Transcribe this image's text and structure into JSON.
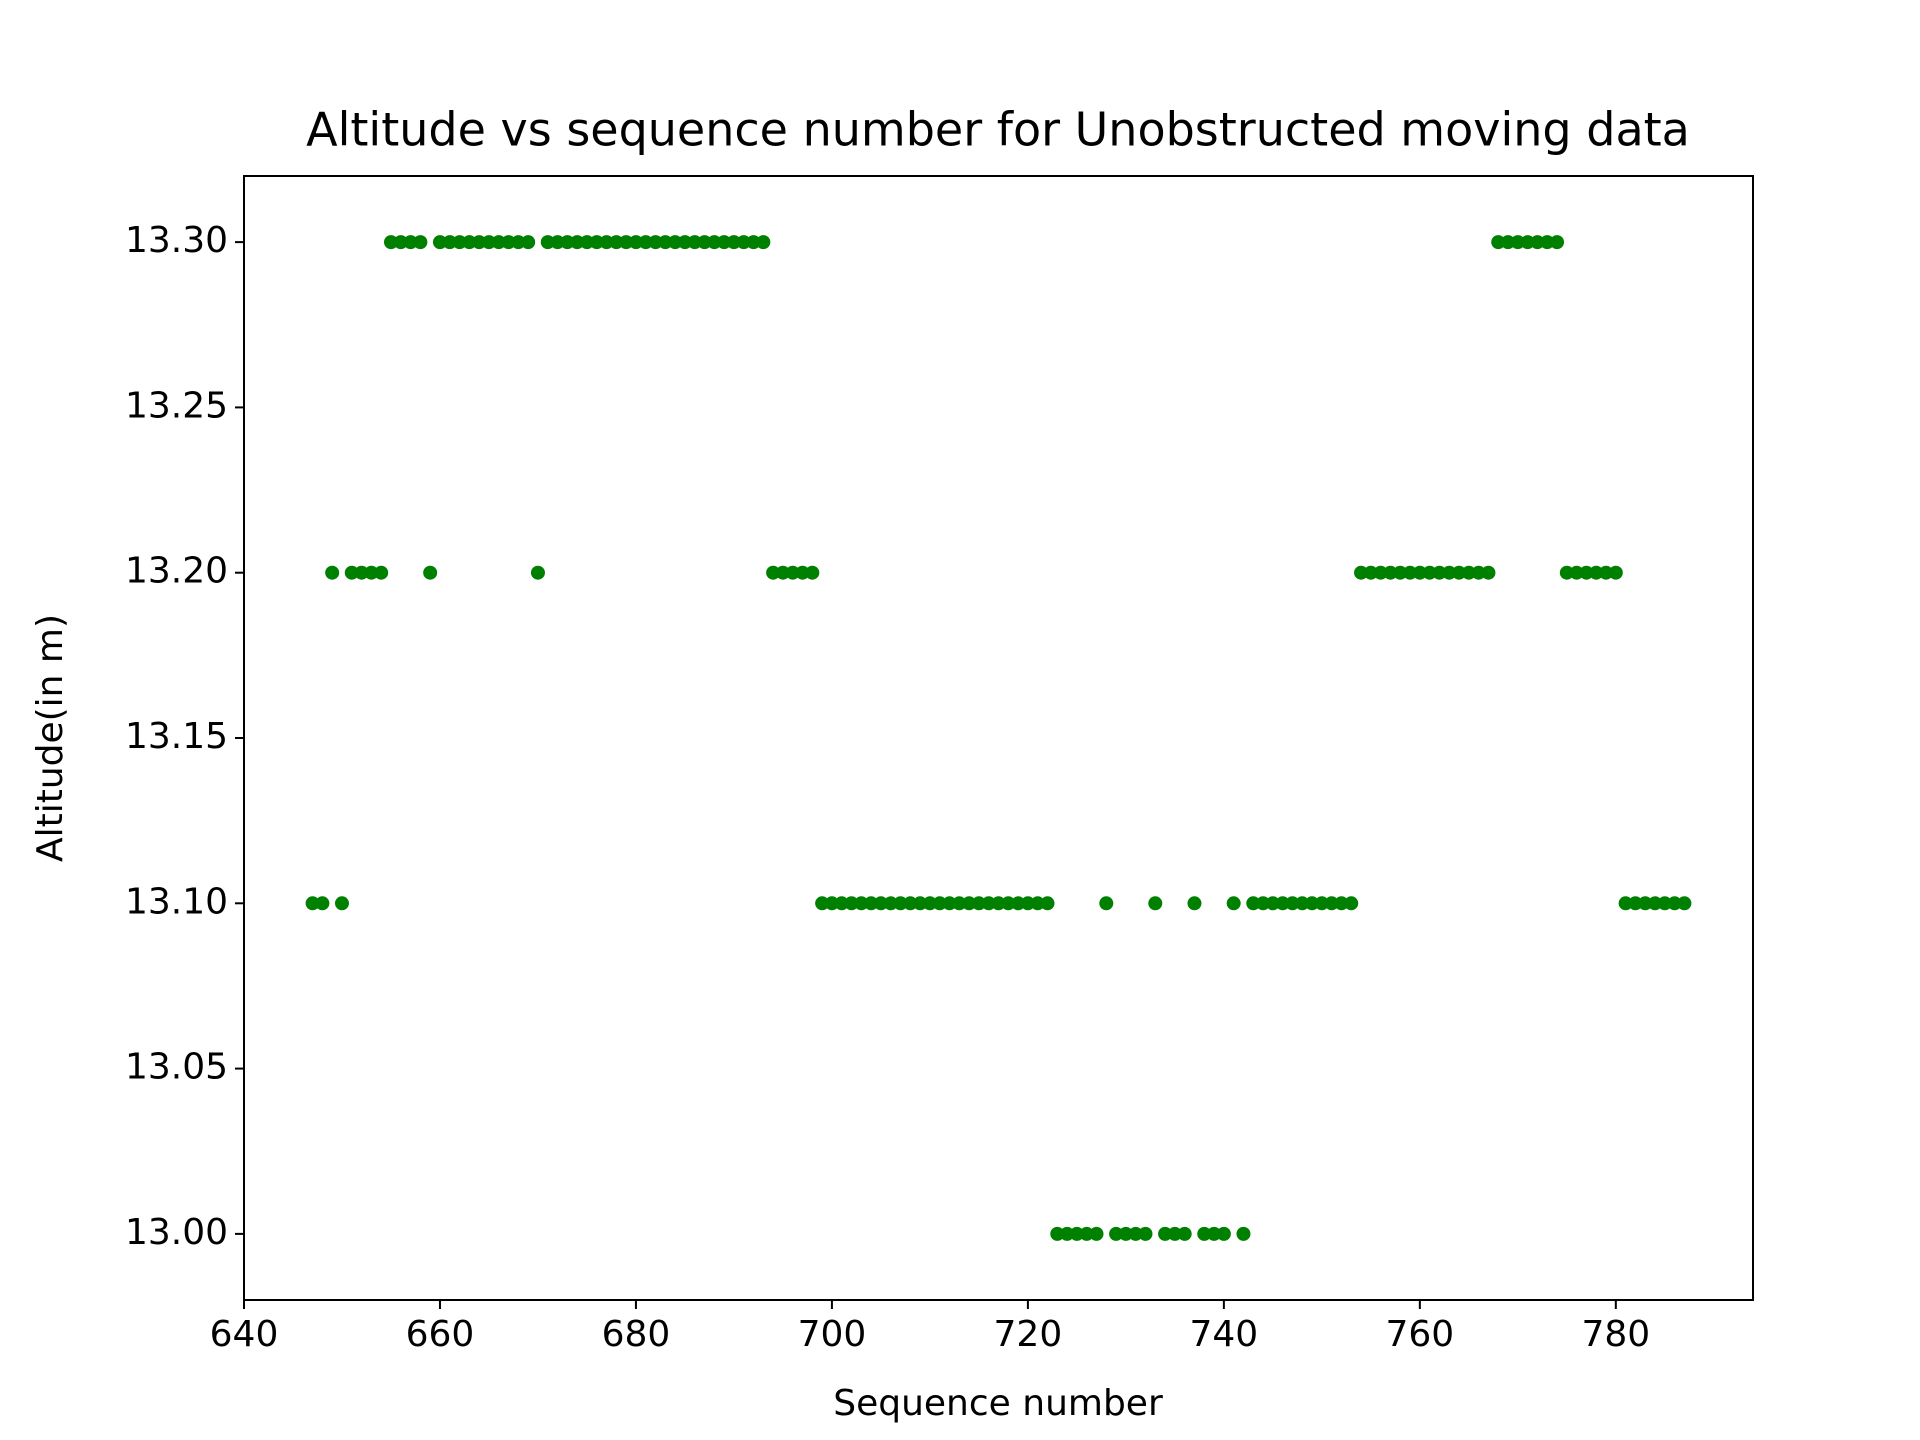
{
  "chart_data": {
    "type": "scatter",
    "title": "Altitude vs sequence number for Unobstructed moving data",
    "x_label": "Sequence number",
    "y_label": "Altitude(in m)",
    "color": "#008000",
    "x": [
      647,
      648,
      649,
      650,
      651,
      652,
      653,
      654,
      655,
      656,
      657,
      658,
      659,
      660,
      661,
      662,
      663,
      664,
      665,
      666,
      667,
      668,
      669,
      670,
      671,
      672,
      673,
      674,
      675,
      676,
      677,
      678,
      679,
      680,
      681,
      682,
      683,
      684,
      685,
      686,
      687,
      688,
      689,
      690,
      691,
      692,
      693,
      694,
      695,
      696,
      697,
      698,
      699,
      700,
      701,
      702,
      703,
      704,
      705,
      706,
      707,
      708,
      709,
      710,
      711,
      712,
      713,
      714,
      715,
      716,
      717,
      718,
      719,
      720,
      721,
      722,
      723,
      724,
      725,
      726,
      727,
      728,
      729,
      730,
      731,
      732,
      733,
      734,
      735,
      736,
      737,
      738,
      739,
      740,
      741,
      742,
      743,
      744,
      745,
      746,
      747,
      748,
      749,
      750,
      751,
      752,
      753,
      754,
      755,
      756,
      757,
      758,
      759,
      760,
      761,
      762,
      763,
      764,
      765,
      766,
      767,
      768,
      769,
      770,
      771,
      772,
      773,
      774,
      775,
      776,
      777,
      778,
      779,
      780,
      781,
      782,
      783,
      784,
      785,
      786,
      787
    ],
    "values": [
      13.1,
      13.1,
      13.2,
      13.1,
      13.2,
      13.2,
      13.2,
      13.2,
      13.3,
      13.3,
      13.3,
      13.3,
      13.2,
      13.3,
      13.3,
      13.3,
      13.3,
      13.3,
      13.3,
      13.3,
      13.3,
      13.3,
      13.3,
      13.2,
      13.3,
      13.3,
      13.3,
      13.3,
      13.3,
      13.3,
      13.3,
      13.3,
      13.3,
      13.3,
      13.3,
      13.3,
      13.3,
      13.3,
      13.3,
      13.3,
      13.3,
      13.3,
      13.3,
      13.3,
      13.3,
      13.3,
      13.3,
      13.2,
      13.2,
      13.2,
      13.2,
      13.2,
      13.1,
      13.1,
      13.1,
      13.1,
      13.1,
      13.1,
      13.1,
      13.1,
      13.1,
      13.1,
      13.1,
      13.1,
      13.1,
      13.1,
      13.1,
      13.1,
      13.1,
      13.1,
      13.1,
      13.1,
      13.1,
      13.1,
      13.1,
      13.1,
      13.0,
      13.0,
      13.0,
      13.0,
      13.0,
      13.1,
      13.0,
      13.0,
      13.0,
      13.0,
      13.1,
      13.0,
      13.0,
      13.0,
      13.1,
      13.0,
      13.0,
      13.0,
      13.1,
      13.0,
      13.1,
      13.1,
      13.1,
      13.1,
      13.1,
      13.1,
      13.1,
      13.1,
      13.1,
      13.1,
      13.1,
      13.2,
      13.2,
      13.2,
      13.2,
      13.2,
      13.2,
      13.2,
      13.2,
      13.2,
      13.2,
      13.2,
      13.2,
      13.2,
      13.2,
      13.3,
      13.3,
      13.3,
      13.3,
      13.3,
      13.3,
      13.3,
      13.2,
      13.2,
      13.2,
      13.2,
      13.2,
      13.2,
      13.1,
      13.1,
      13.1,
      13.1,
      13.1,
      13.1,
      13.1
    ],
    "xlim": [
      640,
      794
    ],
    "ylim": [
      12.98,
      13.32
    ],
    "xticks": [
      640,
      660,
      680,
      700,
      720,
      740,
      760,
      780
    ],
    "yticks": [
      {
        "value": 13.0,
        "label": "13.00"
      },
      {
        "value": 13.05,
        "label": "13.05"
      },
      {
        "value": 13.1,
        "label": "13.10"
      },
      {
        "value": 13.15,
        "label": "13.15"
      },
      {
        "value": 13.2,
        "label": "13.20"
      },
      {
        "value": 13.25,
        "label": "13.25"
      },
      {
        "value": 13.3,
        "label": "13.30"
      }
    ]
  }
}
